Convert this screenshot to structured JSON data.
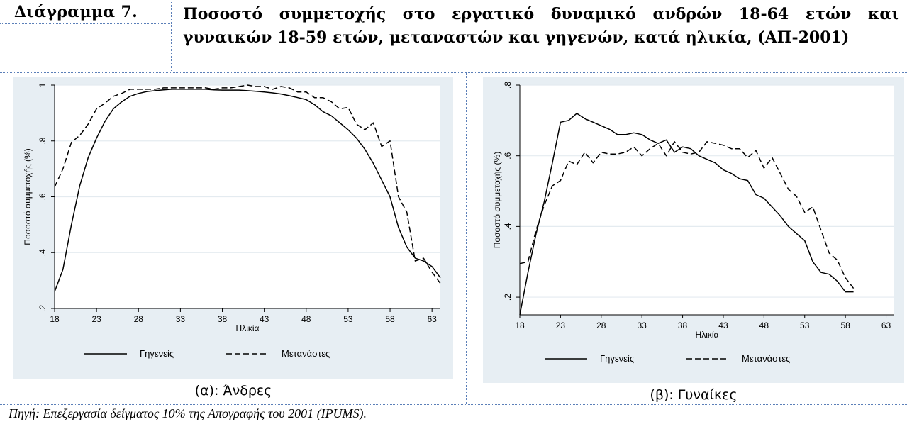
{
  "header": {
    "label": "Διάγραμμα 7.",
    "title": "Ποσοστό συμμετοχής στο εργατικό δυναμικό ανδρών 18-64 ετών και γυναικών 18-59 ετών, μεταναστών και γηγενών, κατά ηλικία, (ΑΠ-2001)"
  },
  "source": "Πηγή: Επεξεργασία δείγματος 10% της Απογραφής του 2001 (IPUMS).",
  "chart_data": [
    {
      "type": "line",
      "caption": "(α): Άνδρες",
      "xlabel": "Ηλικία",
      "ylabel": "Ποσοστό συμμετοχής (%)",
      "xlim": [
        18,
        64
      ],
      "ylim": [
        0.2,
        1.0
      ],
      "xticks": [
        18,
        23,
        28,
        33,
        38,
        43,
        48,
        53,
        58,
        63
      ],
      "yticks": [
        0.2,
        0.4,
        0.6,
        0.8,
        1.0
      ],
      "ytick_labels": [
        ".2",
        ".4",
        ".6",
        ".8",
        "1"
      ],
      "grid": true,
      "legend": "bottom",
      "x": [
        18,
        19,
        20,
        21,
        22,
        23,
        24,
        25,
        26,
        27,
        28,
        29,
        30,
        31,
        32,
        33,
        34,
        35,
        36,
        37,
        38,
        39,
        40,
        41,
        42,
        43,
        44,
        45,
        46,
        47,
        48,
        49,
        50,
        51,
        52,
        53,
        54,
        55,
        56,
        57,
        58,
        59,
        60,
        61,
        62,
        63,
        64
      ],
      "series": [
        {
          "name": "Γηγενείς",
          "style": "solid",
          "values": [
            0.26,
            0.34,
            0.5,
            0.64,
            0.74,
            0.81,
            0.87,
            0.915,
            0.94,
            0.96,
            0.97,
            0.977,
            0.98,
            0.983,
            0.985,
            0.985,
            0.985,
            0.985,
            0.985,
            0.983,
            0.982,
            0.982,
            0.982,
            0.98,
            0.978,
            0.975,
            0.972,
            0.968,
            0.962,
            0.955,
            0.948,
            0.93,
            0.905,
            0.89,
            0.865,
            0.84,
            0.81,
            0.77,
            0.72,
            0.66,
            0.6,
            0.49,
            0.42,
            0.38,
            0.37,
            0.35,
            0.31
          ]
        },
        {
          "name": "Μετανάστες",
          "style": "dashed",
          "values": [
            0.635,
            0.7,
            0.795,
            0.82,
            0.86,
            0.915,
            0.935,
            0.96,
            0.97,
            0.985,
            0.985,
            0.985,
            0.985,
            0.99,
            0.99,
            0.99,
            0.99,
            0.99,
            0.99,
            0.985,
            0.99,
            0.99,
            0.995,
            1.0,
            0.995,
            0.995,
            0.985,
            0.995,
            0.99,
            0.975,
            0.975,
            0.955,
            0.955,
            0.94,
            0.915,
            0.92,
            0.86,
            0.84,
            0.865,
            0.78,
            0.8,
            0.6,
            0.545,
            0.37,
            0.38,
            0.33,
            0.29
          ]
        }
      ]
    },
    {
      "type": "line",
      "caption": "(β): Γυναίκες",
      "xlabel": "Ηλικία",
      "ylabel": "Ποσοστό συμμετοχής (%)",
      "xlim": [
        18,
        64
      ],
      "ylim": [
        0.15,
        0.8
      ],
      "xticks": [
        18,
        23,
        28,
        33,
        38,
        43,
        48,
        53,
        58,
        63
      ],
      "yticks": [
        0.2,
        0.4,
        0.6,
        0.8
      ],
      "ytick_labels": [
        ".2",
        ".4",
        ".6",
        ".8"
      ],
      "grid": true,
      "legend": "bottom",
      "x": [
        18,
        19,
        20,
        21,
        22,
        23,
        24,
        25,
        26,
        27,
        28,
        29,
        30,
        31,
        32,
        33,
        34,
        35,
        36,
        37,
        38,
        39,
        40,
        41,
        42,
        43,
        44,
        45,
        46,
        47,
        48,
        49,
        50,
        51,
        52,
        53,
        54,
        55,
        56,
        57,
        58,
        59
      ],
      "series": [
        {
          "name": "Γηγενείς",
          "style": "solid",
          "values": [
            0.15,
            0.27,
            0.38,
            0.47,
            0.58,
            0.695,
            0.7,
            0.72,
            0.705,
            0.695,
            0.685,
            0.675,
            0.66,
            0.66,
            0.665,
            0.66,
            0.645,
            0.635,
            0.645,
            0.61,
            0.625,
            0.62,
            0.6,
            0.59,
            0.58,
            0.56,
            0.55,
            0.535,
            0.53,
            0.49,
            0.48,
            0.455,
            0.43,
            0.4,
            0.38,
            0.36,
            0.3,
            0.27,
            0.265,
            0.245,
            0.215,
            0.215
          ]
        },
        {
          "name": "Μετανάστες",
          "style": "dashed",
          "values": [
            0.295,
            0.3,
            0.39,
            0.46,
            0.515,
            0.53,
            0.585,
            0.575,
            0.61,
            0.58,
            0.61,
            0.605,
            0.605,
            0.61,
            0.625,
            0.6,
            0.62,
            0.635,
            0.6,
            0.64,
            0.61,
            0.605,
            0.61,
            0.64,
            0.635,
            0.63,
            0.62,
            0.62,
            0.595,
            0.615,
            0.565,
            0.595,
            0.55,
            0.505,
            0.485,
            0.44,
            0.455,
            0.39,
            0.325,
            0.305,
            0.255,
            0.225
          ]
        }
      ]
    }
  ]
}
